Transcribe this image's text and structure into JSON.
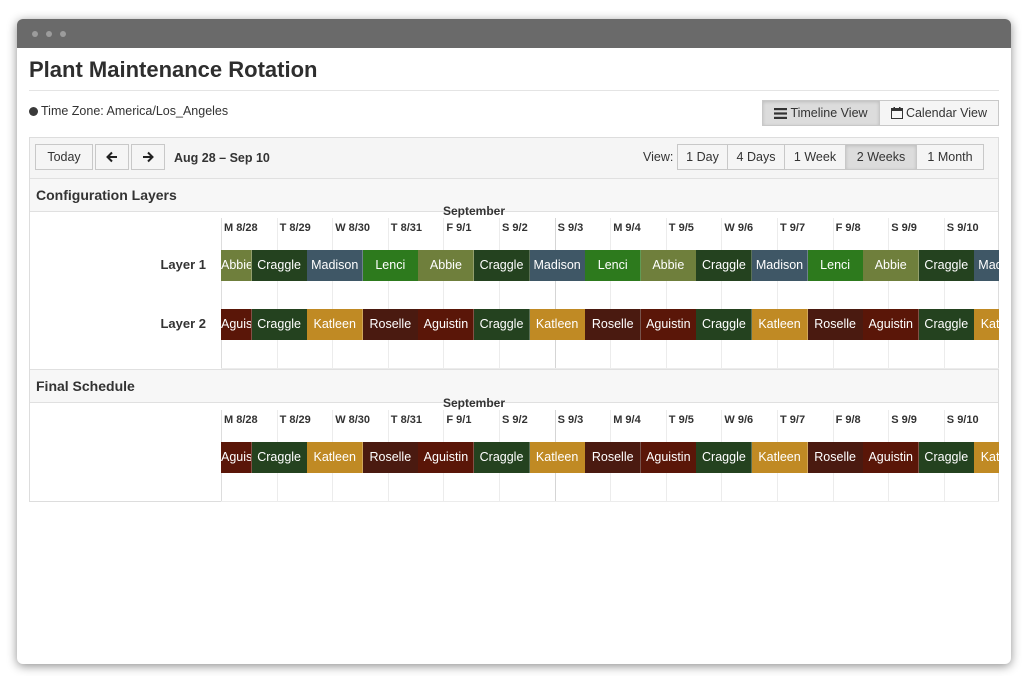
{
  "app": {
    "title": "Plant Maintenance Rotation"
  },
  "timezone": {
    "label": "Time Zone: America/Los_Angeles"
  },
  "view_switch": {
    "timeline": "Timeline View",
    "calendar": "Calendar View",
    "active": "timeline"
  },
  "nav": {
    "today": "Today",
    "range": "Aug 28 – Sep 10",
    "view_label": "View:",
    "views": [
      "1 Day",
      "4 Days",
      "1 Week",
      "2 Weeks",
      "1 Month"
    ],
    "active_view": "2 Weeks"
  },
  "config": {
    "title": "Configuration Layers",
    "month": "September",
    "days": [
      "M 8/28",
      "T 8/29",
      "W 8/30",
      "T 8/31",
      "F 9/1",
      "S 9/2",
      "S 9/3",
      "M 9/4",
      "T 9/5",
      "W 9/6",
      "T 9/7",
      "F 9/8",
      "S 9/9",
      "S 9/10"
    ],
    "layers": [
      {
        "label": "Layer 1",
        "shifts": [
          {
            "name": "Abbie",
            "color": "#6f7f3c",
            "days": 0.55
          },
          {
            "name": "Craggle",
            "color": "#24421f",
            "days": 1
          },
          {
            "name": "Madison",
            "color": "#3f5766",
            "days": 1
          },
          {
            "name": "Lenci",
            "color": "#2d7a1d",
            "days": 1
          },
          {
            "name": "Abbie",
            "color": "#6f7f3c",
            "days": 1
          },
          {
            "name": "Craggle",
            "color": "#24421f",
            "days": 1
          },
          {
            "name": "Madison",
            "color": "#3f5766",
            "days": 1
          },
          {
            "name": "Lenci",
            "color": "#2d7a1d",
            "days": 1
          },
          {
            "name": "Abbie",
            "color": "#6f7f3c",
            "days": 1
          },
          {
            "name": "Craggle",
            "color": "#24421f",
            "days": 1
          },
          {
            "name": "Madison",
            "color": "#3f5766",
            "days": 1
          },
          {
            "name": "Lenci",
            "color": "#2d7a1d",
            "days": 1
          },
          {
            "name": "Abbie",
            "color": "#6f7f3c",
            "days": 1
          },
          {
            "name": "Craggle",
            "color": "#24421f",
            "days": 1
          },
          {
            "name": "Madison",
            "color": "#3f5766",
            "days": 1
          }
        ]
      },
      {
        "label": "Layer 2",
        "shifts": [
          {
            "name": "Aguistin",
            "color": "#5a1608",
            "days": 0.55
          },
          {
            "name": "Craggle",
            "color": "#24421f",
            "days": 1
          },
          {
            "name": "Katleen",
            "color": "#c08a24",
            "days": 1
          },
          {
            "name": "Roselle",
            "color": "#4a1a10",
            "days": 1
          },
          {
            "name": "Aguistin",
            "color": "#5a1608",
            "days": 1
          },
          {
            "name": "Craggle",
            "color": "#24421f",
            "days": 1
          },
          {
            "name": "Katleen",
            "color": "#c08a24",
            "days": 1
          },
          {
            "name": "Roselle",
            "color": "#4a1a10",
            "days": 1
          },
          {
            "name": "Aguistin",
            "color": "#5a1608",
            "days": 1
          },
          {
            "name": "Craggle",
            "color": "#24421f",
            "days": 1
          },
          {
            "name": "Katleen",
            "color": "#c08a24",
            "days": 1
          },
          {
            "name": "Roselle",
            "color": "#4a1a10",
            "days": 1
          },
          {
            "name": "Aguistin",
            "color": "#5a1608",
            "days": 1
          },
          {
            "name": "Craggle",
            "color": "#24421f",
            "days": 1
          },
          {
            "name": "Katleen",
            "color": "#c08a24",
            "days": 1
          }
        ]
      }
    ]
  },
  "final": {
    "title": "Final Schedule",
    "month": "September",
    "days": [
      "M 8/28",
      "T 8/29",
      "W 8/30",
      "T 8/31",
      "F 9/1",
      "S 9/2",
      "S 9/3",
      "M 9/4",
      "T 9/5",
      "W 9/6",
      "T 9/7",
      "F 9/8",
      "S 9/9",
      "S 9/10"
    ],
    "shifts": [
      {
        "name": "Aguistin",
        "color": "#5a1608",
        "days": 0.55
      },
      {
        "name": "Craggle",
        "color": "#24421f",
        "days": 1
      },
      {
        "name": "Katleen",
        "color": "#c08a24",
        "days": 1
      },
      {
        "name": "Roselle",
        "color": "#4a1a10",
        "days": 1
      },
      {
        "name": "Aguistin",
        "color": "#5a1608",
        "days": 1
      },
      {
        "name": "Craggle",
        "color": "#24421f",
        "days": 1
      },
      {
        "name": "Katleen",
        "color": "#c08a24",
        "days": 1
      },
      {
        "name": "Roselle",
        "color": "#4a1a10",
        "days": 1
      },
      {
        "name": "Aguistin",
        "color": "#5a1608",
        "days": 1
      },
      {
        "name": "Craggle",
        "color": "#24421f",
        "days": 1
      },
      {
        "name": "Katleen",
        "color": "#c08a24",
        "days": 1
      },
      {
        "name": "Roselle",
        "color": "#4a1a10",
        "days": 1
      },
      {
        "name": "Aguistin",
        "color": "#5a1608",
        "days": 1
      },
      {
        "name": "Craggle",
        "color": "#24421f",
        "days": 1
      },
      {
        "name": "Katleen",
        "color": "#c08a24",
        "days": 1
      }
    ]
  }
}
